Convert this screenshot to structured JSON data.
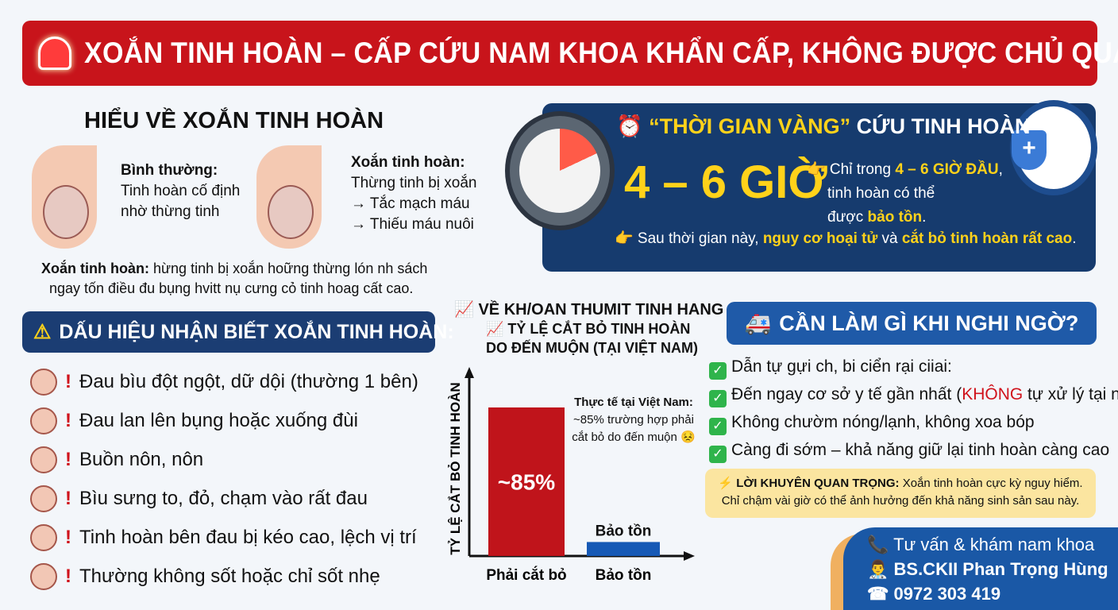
{
  "banner": {
    "title": "XOẮN TINH HOÀN – CẤP CỨU NAM KHOA KHẨN CẤP, KHÔNG ĐƯỢC CHỦ QUAN!",
    "icon": "siren-icon"
  },
  "understand": {
    "title": "HIỂU VỀ XOẮN TINH HOÀN",
    "normal_title": "Bình thường:",
    "normal_lines": [
      "Tinh hoàn cố định",
      "nhờ thừng tinh"
    ],
    "torsion_title": "Xoắn tinh hoàn:",
    "torsion_lines": [
      "Thừng tinh bị xoắn",
      "→ Tắc mạch máu",
      "→ Thiếu máu nuôi"
    ],
    "summary_bold": "Xoắn tinh hoàn:",
    "summary_1": " hừng tinh bị xoắn hoững thừng lón nh sách",
    "summary_2": "ngay tốn điều đu bụng hvitt nụ cưng cỏ tinh hoag cất cao."
  },
  "golden": {
    "title_quote": "“THỜI GIAN VÀNG”",
    "title_rest": " CỨU TINH HOÀN",
    "big": "4 – 6 GIỜ",
    "l1a": "👉 Chỉ trong ",
    "l1b": "4 – 6 GIỜ ĐẦU",
    ",": ",",
    "l2": "tinh hoàn có thể",
    "l3a": "được ",
    "l3b": "bảo tồn",
    ".": ".",
    "l4a": "👉 Sau thời gian này, ",
    "l4b": "nguy cơ hoại tử",
    "l4c": " và ",
    "l4d": "cắt bỏ tinh hoàn rất cao",
    "l4e": "."
  },
  "signs": {
    "title": "DẤU HIỆU NHẬN BIẾT XOẮN TINH HOÀN:",
    "items": [
      "Đau bìu đột ngột, dữ dội (thường 1 bên)",
      "Đau lan lên bụng hoặc xuống đùi",
      "Buồn nôn, nôn",
      "Bìu sưng to, đỏ, chạm vào rất đau",
      "Tinh hoàn bên đau bị kéo cao, lệch vị trí",
      "Thường không sốt hoặc chỉ sốt nhẹ"
    ],
    "mark": "!"
  },
  "chart_data": {
    "type": "bar",
    "heading": "VỀ KH/OAN THUMIT TINH HANG",
    "title_1": "TỶ LỆ CẮT BỎ TINH HOÀN",
    "title_2": "DO ĐẾN MUỘN (TẠI VIỆT NAM)",
    "ylabel": "TỶ LỆ CẮT BỎ TINH HOÀN",
    "categories": [
      "Phải cắt bỏ",
      "Bảo tồn"
    ],
    "values": [
      85,
      8
    ],
    "data_labels": [
      "~85%",
      "Bảo tồn"
    ],
    "colors": [
      "#c0141b",
      "#1659b5"
    ],
    "ylim": [
      0,
      100
    ],
    "annotation": {
      "title": "Thực tế tại Việt Nam:",
      "l1": "~85% trường hợp phải",
      "l2": "cắt bỏ do đến muộn 😣"
    }
  },
  "todo": {
    "title": "CẦN LÀM GÌ KHI NGHI NGỜ?",
    "items": [
      {
        "a": "Dẫn tự gựi ch, bi ciển rại ciiai:"
      },
      {
        "a": "Đến ngay cơ sở y tế gần nhất (",
        "red": "KHÔNG",
        "b": " tự xử lý tại nhà)"
      },
      {
        "a": "Không chườm nóng/lạnh, không xoa bóp"
      },
      {
        "a": "Càng đi sớm – khả năng giữ lại tinh hoàn càng cao"
      }
    ],
    "check": "✓"
  },
  "advice": {
    "bold": "LỜI KHUYÊN QUAN TRỌNG:",
    "l1": " Xoắn tinh hoàn cực kỳ nguy hiểm.",
    "l2": "Chỉ chậm vài giờ có thể ảnh hưởng đến khả năng sinh sản sau này."
  },
  "contact": {
    "l1": "📞 Tư vấn & khám nam khoa",
    "l2": "👨‍⚕️ BS.CKII Phan Trọng Hùng",
    "l3": "☎ 0972 303 419"
  },
  "colors": {
    "red": "#c8141b",
    "navy": "#1b3d73",
    "yellow": "#ffd21a",
    "blue": "#1659b5"
  }
}
